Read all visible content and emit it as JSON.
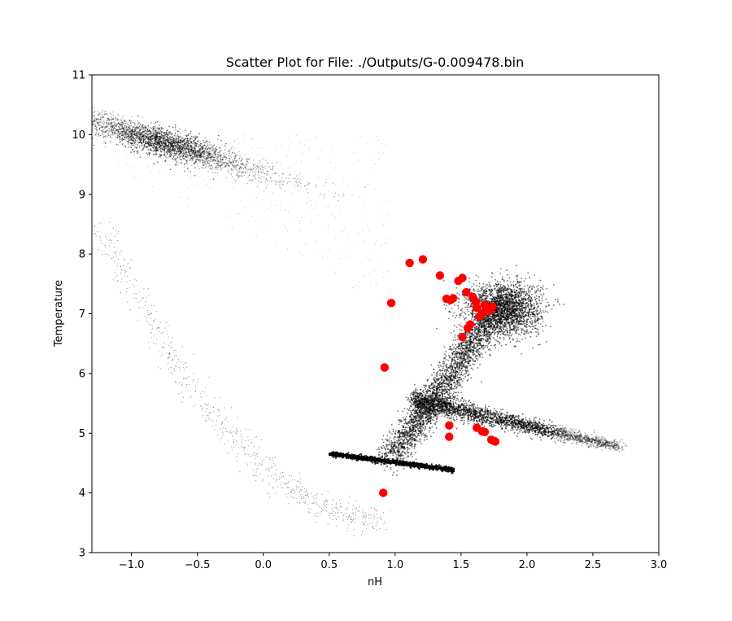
{
  "chart_data": {
    "type": "scatter",
    "title": "Scatter Plot for File: ./Outputs/G-0.009478.bin",
    "xlabel": "nH",
    "ylabel": "Temperature",
    "xlim": [
      -1.3,
      3.0
    ],
    "ylim": [
      3,
      11
    ],
    "xticks": [
      -1.0,
      -0.5,
      0.0,
      0.5,
      1.0,
      1.5,
      2.0,
      2.5,
      3.0
    ],
    "xtick_labels": [
      "−1.0",
      "−0.5",
      "0.0",
      "0.5",
      "1.0",
      "1.5",
      "2.0",
      "2.5",
      "3.0"
    ],
    "yticks": [
      3,
      4,
      5,
      6,
      7,
      8,
      9,
      10,
      11
    ],
    "ytick_labels": [
      "3",
      "4",
      "5",
      "6",
      "7",
      "8",
      "9",
      "10",
      "11"
    ],
    "grid": false,
    "legend": "none",
    "colors": {
      "background_points": "#000000",
      "highlight_points": "#ff0000"
    },
    "background_distribution": [
      {
        "region": "hot diffuse cloud",
        "x_range": [
          -1.3,
          0.8
        ],
        "y_range": [
          8.0,
          10.9
        ],
        "density_peak": [
          -0.8,
          9.9
        ]
      },
      {
        "region": "hot bubble",
        "x_range": [
          1.4,
          2.2
        ],
        "y_range": [
          6.5,
          8.0
        ],
        "density_peak": [
          1.8,
          7.1
        ]
      },
      {
        "region": "diagonal branch",
        "x_range": [
          0.9,
          1.7
        ],
        "y_range": [
          4.5,
          6.8
        ],
        "density_peak": [
          1.1,
          5.4
        ]
      },
      {
        "region": "warm branch",
        "x_range": [
          1.1,
          2.75
        ],
        "y_range": [
          4.6,
          5.6
        ],
        "density_peak": [
          1.8,
          4.9
        ]
      },
      {
        "region": "cold band",
        "x_range": [
          0.5,
          1.4
        ],
        "y_range": [
          4.4,
          4.7
        ],
        "density_peak": [
          1.0,
          4.55
        ]
      },
      {
        "region": "sparse outer arc",
        "x_range": [
          -1.3,
          0.9
        ],
        "y_range": [
          3.5,
          8.8
        ],
        "density_peak": null
      }
    ],
    "series": [
      {
        "marker": "circle",
        "color": "#ff0000",
        "points": [
          [
            0.91,
            4.0
          ],
          [
            0.92,
            6.1
          ],
          [
            0.97,
            7.18
          ],
          [
            1.11,
            7.85
          ],
          [
            1.21,
            7.91
          ],
          [
            1.34,
            7.64
          ],
          [
            1.39,
            7.25
          ],
          [
            1.42,
            7.23
          ],
          [
            1.44,
            7.26
          ],
          [
            1.48,
            7.55
          ],
          [
            1.51,
            7.6
          ],
          [
            1.54,
            7.36
          ],
          [
            1.51,
            6.61
          ],
          [
            1.55,
            6.76
          ],
          [
            1.57,
            6.82
          ],
          [
            1.59,
            7.28
          ],
          [
            1.61,
            7.2
          ],
          [
            1.62,
            7.1
          ],
          [
            1.64,
            6.95
          ],
          [
            1.66,
            7.0
          ],
          [
            1.68,
            7.15
          ],
          [
            1.7,
            7.08
          ],
          [
            1.72,
            7.05
          ],
          [
            1.74,
            7.12
          ],
          [
            1.41,
            5.13
          ],
          [
            1.41,
            4.94
          ],
          [
            1.62,
            5.09
          ],
          [
            1.66,
            5.03
          ],
          [
            1.68,
            5.02
          ],
          [
            1.73,
            4.89
          ],
          [
            1.75,
            4.87
          ],
          [
            1.76,
            4.86
          ]
        ]
      }
    ]
  }
}
